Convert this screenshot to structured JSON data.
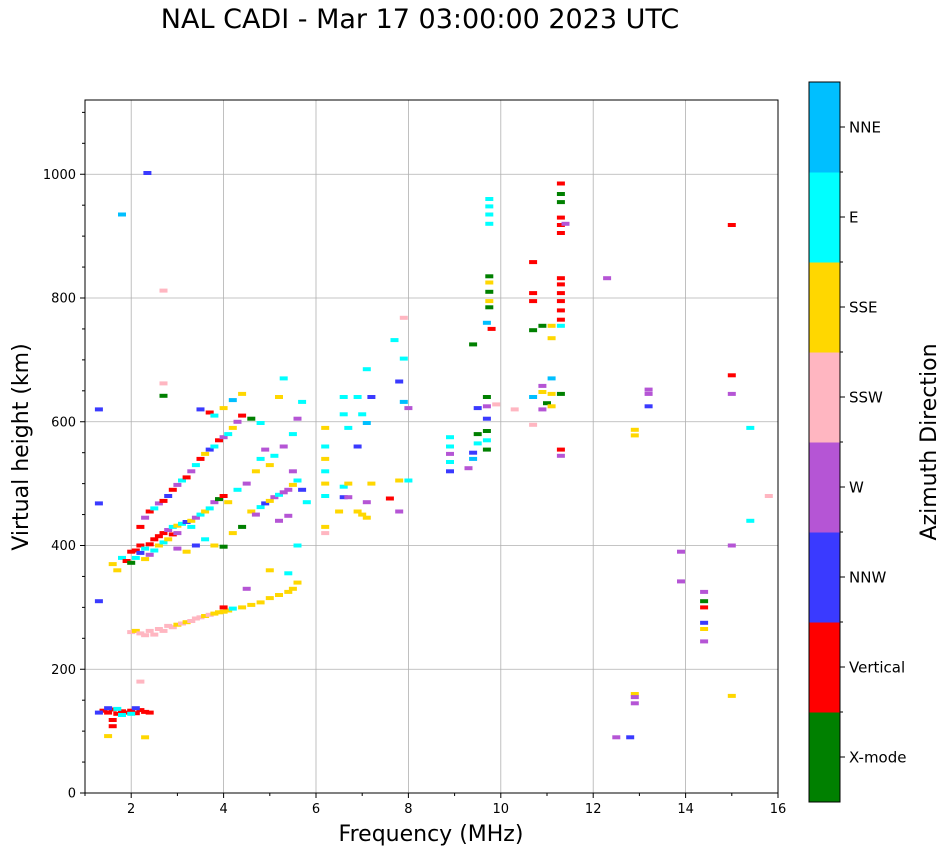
{
  "chart_data": {
    "type": "scatter",
    "title": "NAL CADI - Mar 17 03:00:00 2023 UTC",
    "xlabel": "Frequency (MHz)",
    "ylabel": "Virtual height (km)",
    "xlim": [
      1.0,
      16.0
    ],
    "ylim": [
      0,
      1120
    ],
    "xticks": [
      2,
      4,
      6,
      8,
      10,
      12,
      14,
      16
    ],
    "yticks": [
      0,
      200,
      400,
      600,
      800,
      1000
    ],
    "grid": true,
    "colorbar": {
      "label": "Azimuth Direction",
      "categories": [
        {
          "name": "X-mode",
          "color": "#008000"
        },
        {
          "name": "Vertical",
          "color": "#ff0000"
        },
        {
          "name": "NNW",
          "color": "#3a3aff"
        },
        {
          "name": "W",
          "color": "#b555d5"
        },
        {
          "name": "SSW",
          "color": "#ffb6c1"
        },
        {
          "name": "SSE",
          "color": "#ffd700"
        },
        {
          "name": "E",
          "color": "#00ffff"
        },
        {
          "name": "NNE",
          "color": "#00bfff"
        }
      ]
    },
    "points": [
      [
        1.4,
        133,
        "Vertical"
      ],
      [
        1.5,
        130,
        "Vertical"
      ],
      [
        1.6,
        135,
        "Vertical"
      ],
      [
        1.7,
        128,
        "Vertical"
      ],
      [
        1.8,
        132,
        "Vertical"
      ],
      [
        1.9,
        130,
        "Vertical"
      ],
      [
        2.0,
        133,
        "Vertical"
      ],
      [
        2.1,
        129,
        "Vertical"
      ],
      [
        2.2,
        134,
        "Vertical"
      ],
      [
        2.3,
        131,
        "Vertical"
      ],
      [
        2.4,
        130,
        "Vertical"
      ],
      [
        1.6,
        118,
        "Vertical"
      ],
      [
        1.6,
        108,
        "Vertical"
      ],
      [
        1.3,
        130,
        "NNW"
      ],
      [
        1.5,
        137,
        "NNW"
      ],
      [
        1.7,
        136,
        "E"
      ],
      [
        1.8,
        126,
        "E"
      ],
      [
        2.0,
        128,
        "E"
      ],
      [
        2.1,
        137,
        "NNW"
      ],
      [
        1.5,
        92,
        "SSE"
      ],
      [
        2.3,
        90,
        "SSE"
      ],
      [
        2.2,
        180,
        "SSW"
      ],
      [
        2.0,
        260,
        "SSW"
      ],
      [
        2.1,
        262,
        "SSE"
      ],
      [
        2.2,
        258,
        "SSW"
      ],
      [
        2.3,
        255,
        "SSW"
      ],
      [
        2.4,
        262,
        "SSW"
      ],
      [
        2.5,
        256,
        "SSW"
      ],
      [
        2.6,
        265,
        "SSW"
      ],
      [
        2.7,
        262,
        "SSW"
      ],
      [
        2.8,
        270,
        "SSW"
      ],
      [
        2.9,
        268,
        "SSW"
      ],
      [
        3.0,
        272,
        "SSE"
      ],
      [
        3.1,
        274,
        "SSW"
      ],
      [
        3.2,
        276,
        "SSE"
      ],
      [
        3.3,
        278,
        "SSW"
      ],
      [
        3.4,
        282,
        "SSW"
      ],
      [
        3.5,
        284,
        "SSW"
      ],
      [
        3.6,
        286,
        "SSE"
      ],
      [
        3.7,
        288,
        "SSW"
      ],
      [
        3.8,
        290,
        "SSE"
      ],
      [
        3.9,
        292,
        "SSE"
      ],
      [
        4.0,
        293,
        "SSE"
      ],
      [
        4.1,
        295,
        "SSE"
      ],
      [
        4.2,
        298,
        "E"
      ],
      [
        4.4,
        300,
        "SSE"
      ],
      [
        4.6,
        304,
        "SSE"
      ],
      [
        4.8,
        308,
        "SSE"
      ],
      [
        5.0,
        315,
        "SSE"
      ],
      [
        5.2,
        320,
        "SSE"
      ],
      [
        5.4,
        325,
        "SSE"
      ],
      [
        5.5,
        330,
        "SSE"
      ],
      [
        5.6,
        340,
        "SSE"
      ],
      [
        4.0,
        300,
        "Vertical"
      ],
      [
        4.5,
        330,
        "W"
      ],
      [
        5.0,
        360,
        "SSE"
      ],
      [
        5.4,
        355,
        "E"
      ],
      [
        5.6,
        400,
        "E"
      ],
      [
        1.3,
        310,
        "NNW"
      ],
      [
        1.3,
        468,
        "NNW"
      ],
      [
        1.3,
        620,
        "NNW"
      ],
      [
        1.8,
        935,
        "NNE"
      ],
      [
        2.35,
        1002,
        "NNW"
      ],
      [
        2.7,
        812,
        "SSW"
      ],
      [
        2.7,
        662,
        "SSW"
      ],
      [
        2.7,
        642,
        "X-mode"
      ],
      [
        1.6,
        370,
        "SSE"
      ],
      [
        1.7,
        360,
        "SSE"
      ],
      [
        1.8,
        380,
        "E"
      ],
      [
        1.9,
        375,
        "Vertical"
      ],
      [
        2.0,
        390,
        "Vertical"
      ],
      [
        2.0,
        372,
        "X-mode"
      ],
      [
        2.1,
        392,
        "Vertical"
      ],
      [
        2.1,
        380,
        "E"
      ],
      [
        2.2,
        388,
        "NNW"
      ],
      [
        2.2,
        400,
        "Vertical"
      ],
      [
        2.3,
        395,
        "E"
      ],
      [
        2.3,
        378,
        "SSE"
      ],
      [
        2.4,
        402,
        "Vertical"
      ],
      [
        2.4,
        385,
        "W"
      ],
      [
        2.5,
        410,
        "Vertical"
      ],
      [
        2.5,
        392,
        "E"
      ],
      [
        2.6,
        415,
        "Vertical"
      ],
      [
        2.6,
        400,
        "SSE"
      ],
      [
        2.7,
        420,
        "Vertical"
      ],
      [
        2.7,
        405,
        "E"
      ],
      [
        2.8,
        425,
        "W"
      ],
      [
        2.8,
        410,
        "SSE"
      ],
      [
        2.9,
        430,
        "E"
      ],
      [
        2.9,
        418,
        "Vertical"
      ],
      [
        3.0,
        432,
        "SSE"
      ],
      [
        3.0,
        420,
        "W"
      ],
      [
        3.1,
        435,
        "E"
      ],
      [
        3.2,
        438,
        "NNW"
      ],
      [
        3.3,
        440,
        "SSE"
      ],
      [
        3.3,
        430,
        "E"
      ],
      [
        3.4,
        445,
        "W"
      ],
      [
        3.5,
        450,
        "E"
      ],
      [
        3.6,
        455,
        "SSE"
      ],
      [
        3.7,
        460,
        "E"
      ],
      [
        3.8,
        470,
        "W"
      ],
      [
        3.9,
        475,
        "X-mode"
      ],
      [
        2.2,
        430,
        "Vertical"
      ],
      [
        2.3,
        445,
        "W"
      ],
      [
        2.4,
        455,
        "Vertical"
      ],
      [
        2.5,
        460,
        "E"
      ],
      [
        2.6,
        468,
        "W"
      ],
      [
        2.7,
        472,
        "Vertical"
      ],
      [
        2.8,
        480,
        "NNW"
      ],
      [
        2.9,
        490,
        "Vertical"
      ],
      [
        3.0,
        498,
        "W"
      ],
      [
        3.1,
        505,
        "E"
      ],
      [
        3.2,
        510,
        "Vertical"
      ],
      [
        3.3,
        520,
        "W"
      ],
      [
        3.4,
        530,
        "E"
      ],
      [
        3.5,
        540,
        "Vertical"
      ],
      [
        3.6,
        548,
        "SSE"
      ],
      [
        3.7,
        555,
        "NNW"
      ],
      [
        3.8,
        560,
        "E"
      ],
      [
        3.9,
        570,
        "Vertical"
      ],
      [
        4.0,
        575,
        "W"
      ],
      [
        4.1,
        580,
        "E"
      ],
      [
        4.2,
        590,
        "SSE"
      ],
      [
        4.3,
        600,
        "W"
      ],
      [
        4.4,
        610,
        "Vertical"
      ],
      [
        3.0,
        395,
        "W"
      ],
      [
        3.2,
        390,
        "SSE"
      ],
      [
        3.4,
        400,
        "NNW"
      ],
      [
        3.6,
        410,
        "E"
      ],
      [
        3.8,
        400,
        "SSE"
      ],
      [
        4.0,
        398,
        "X-mode"
      ],
      [
        4.2,
        420,
        "SSE"
      ],
      [
        4.4,
        430,
        "X-mode"
      ],
      [
        3.5,
        620,
        "NNW"
      ],
      [
        3.7,
        615,
        "Vertical"
      ],
      [
        3.8,
        610,
        "E"
      ],
      [
        4.0,
        622,
        "SSE"
      ],
      [
        4.2,
        635,
        "NNE"
      ],
      [
        4.4,
        645,
        "SSE"
      ],
      [
        4.6,
        605,
        "X-mode"
      ],
      [
        4.8,
        598,
        "E"
      ],
      [
        4.0,
        480,
        "Vertical"
      ],
      [
        4.1,
        470,
        "SSE"
      ],
      [
        4.3,
        490,
        "E"
      ],
      [
        4.5,
        500,
        "W"
      ],
      [
        4.7,
        520,
        "SSE"
      ],
      [
        4.8,
        540,
        "E"
      ],
      [
        4.9,
        555,
        "W"
      ],
      [
        4.6,
        455,
        "SSE"
      ],
      [
        4.7,
        450,
        "W"
      ],
      [
        4.8,
        462,
        "E"
      ],
      [
        4.9,
        468,
        "NNW"
      ],
      [
        5.0,
        472,
        "SSE"
      ],
      [
        5.1,
        478,
        "W"
      ],
      [
        5.2,
        482,
        "E"
      ],
      [
        5.3,
        486,
        "W"
      ],
      [
        5.4,
        490,
        "W"
      ],
      [
        5.5,
        498,
        "SSE"
      ],
      [
        5.6,
        505,
        "E"
      ],
      [
        5.2,
        440,
        "W"
      ],
      [
        5.4,
        448,
        "W"
      ],
      [
        5.0,
        530,
        "SSE"
      ],
      [
        5.1,
        545,
        "E"
      ],
      [
        5.3,
        560,
        "W"
      ],
      [
        5.5,
        580,
        "E"
      ],
      [
        5.6,
        605,
        "W"
      ],
      [
        5.7,
        632,
        "E"
      ],
      [
        5.3,
        670,
        "E"
      ],
      [
        5.2,
        640,
        "SSE"
      ],
      [
        5.5,
        520,
        "W"
      ],
      [
        5.7,
        490,
        "NNW"
      ],
      [
        5.8,
        470,
        "E"
      ],
      [
        6.2,
        590,
        "SSE"
      ],
      [
        6.2,
        560,
        "E"
      ],
      [
        6.2,
        540,
        "SSE"
      ],
      [
        6.2,
        520,
        "E"
      ],
      [
        6.2,
        500,
        "SSE"
      ],
      [
        6.2,
        480,
        "E"
      ],
      [
        6.2,
        430,
        "SSE"
      ],
      [
        6.2,
        420,
        "SSW"
      ],
      [
        6.5,
        455,
        "SSE"
      ],
      [
        6.6,
        478,
        "NNW"
      ],
      [
        6.7,
        478,
        "W"
      ],
      [
        6.6,
        495,
        "E"
      ],
      [
        6.7,
        500,
        "SSE"
      ],
      [
        6.6,
        612,
        "E"
      ],
      [
        6.7,
        590,
        "E"
      ],
      [
        6.6,
        640,
        "E"
      ],
      [
        6.9,
        455,
        "SSE"
      ],
      [
        7.0,
        450,
        "SSE"
      ],
      [
        7.1,
        445,
        "SSE"
      ],
      [
        7.1,
        470,
        "W"
      ],
      [
        7.2,
        500,
        "SSE"
      ],
      [
        6.9,
        640,
        "E"
      ],
      [
        7.0,
        612,
        "E"
      ],
      [
        7.1,
        598,
        "NNE"
      ],
      [
        6.9,
        560,
        "NNW"
      ],
      [
        7.2,
        640,
        "NNW"
      ],
      [
        7.1,
        685,
        "E"
      ],
      [
        7.6,
        476,
        "Vertical"
      ],
      [
        7.8,
        455,
        "W"
      ],
      [
        7.8,
        505,
        "SSE"
      ],
      [
        8.0,
        505,
        "E"
      ],
      [
        7.9,
        632,
        "NNE"
      ],
      [
        8.0,
        622,
        "W"
      ],
      [
        7.8,
        665,
        "NNW"
      ],
      [
        7.7,
        732,
        "E"
      ],
      [
        7.9,
        702,
        "E"
      ],
      [
        7.9,
        768,
        "SSW"
      ],
      [
        8.9,
        575,
        "E"
      ],
      [
        8.9,
        560,
        "E"
      ],
      [
        8.9,
        548,
        "W"
      ],
      [
        8.9,
        535,
        "E"
      ],
      [
        8.9,
        520,
        "NNW"
      ],
      [
        9.3,
        525,
        "W"
      ],
      [
        9.4,
        540,
        "NNE"
      ],
      [
        9.4,
        550,
        "NNW"
      ],
      [
        9.5,
        565,
        "E"
      ],
      [
        9.5,
        580,
        "X-mode"
      ],
      [
        9.5,
        622,
        "NNW"
      ],
      [
        9.4,
        725,
        "X-mode"
      ],
      [
        9.7,
        640,
        "X-mode"
      ],
      [
        9.7,
        625,
        "W"
      ],
      [
        9.7,
        605,
        "NNW"
      ],
      [
        9.7,
        585,
        "X-mode"
      ],
      [
        9.7,
        570,
        "E"
      ],
      [
        9.7,
        555,
        "X-mode"
      ],
      [
        9.8,
        750,
        "Vertical"
      ],
      [
        9.7,
        760,
        "NNE"
      ],
      [
        9.75,
        795,
        "SSE"
      ],
      [
        9.75,
        810,
        "X-mode"
      ],
      [
        9.75,
        825,
        "SSE"
      ],
      [
        9.75,
        835,
        "X-mode"
      ],
      [
        9.75,
        785,
        "X-mode"
      ],
      [
        9.75,
        920,
        "E"
      ],
      [
        9.75,
        935,
        "E"
      ],
      [
        9.75,
        948,
        "E"
      ],
      [
        9.75,
        960,
        "E"
      ],
      [
        9.9,
        628,
        "SSW"
      ],
      [
        10.3,
        620,
        "SSW"
      ],
      [
        10.7,
        795,
        "Vertical"
      ],
      [
        10.7,
        808,
        "Vertical"
      ],
      [
        10.7,
        858,
        "Vertical"
      ],
      [
        10.7,
        748,
        "X-mode"
      ],
      [
        10.7,
        640,
        "NNE"
      ],
      [
        10.7,
        595,
        "SSW"
      ],
      [
        10.9,
        755,
        "X-mode"
      ],
      [
        10.9,
        658,
        "W"
      ],
      [
        10.9,
        620,
        "W"
      ],
      [
        10.9,
        648,
        "SSE"
      ],
      [
        11.0,
        630,
        "X-mode"
      ],
      [
        11.1,
        735,
        "SSE"
      ],
      [
        11.1,
        755,
        "SSE"
      ],
      [
        11.1,
        670,
        "NNE"
      ],
      [
        11.1,
        625,
        "SSE"
      ],
      [
        11.1,
        645,
        "SSE"
      ],
      [
        11.3,
        645,
        "X-mode"
      ],
      [
        11.3,
        555,
        "Vertical"
      ],
      [
        11.3,
        545,
        "W"
      ],
      [
        11.3,
        755,
        "E"
      ],
      [
        11.3,
        765,
        "Vertical"
      ],
      [
        11.3,
        780,
        "Vertical"
      ],
      [
        11.3,
        795,
        "Vertical"
      ],
      [
        11.3,
        808,
        "Vertical"
      ],
      [
        11.3,
        822,
        "Vertical"
      ],
      [
        11.3,
        832,
        "Vertical"
      ],
      [
        11.3,
        905,
        "Vertical"
      ],
      [
        11.3,
        918,
        "Vertical"
      ],
      [
        11.3,
        930,
        "Vertical"
      ],
      [
        11.3,
        955,
        "X-mode"
      ],
      [
        11.3,
        968,
        "X-mode"
      ],
      [
        11.3,
        985,
        "Vertical"
      ],
      [
        11.4,
        920,
        "W"
      ],
      [
        12.3,
        832,
        "W"
      ],
      [
        12.5,
        90,
        "W"
      ],
      [
        12.8,
        90,
        "NNW"
      ],
      [
        12.9,
        160,
        "SSE"
      ],
      [
        12.9,
        155,
        "W"
      ],
      [
        12.9,
        145,
        "W"
      ],
      [
        12.9,
        587,
        "SSE"
      ],
      [
        12.9,
        578,
        "SSE"
      ],
      [
        13.2,
        625,
        "NNW"
      ],
      [
        13.2,
        645,
        "W"
      ],
      [
        13.2,
        652,
        "W"
      ],
      [
        13.9,
        390,
        "W"
      ],
      [
        13.9,
        342,
        "W"
      ],
      [
        14.4,
        325,
        "W"
      ],
      [
        14.4,
        310,
        "X-mode"
      ],
      [
        14.4,
        300,
        "Vertical"
      ],
      [
        14.4,
        275,
        "NNW"
      ],
      [
        14.4,
        265,
        "SSE"
      ],
      [
        14.4,
        245,
        "W"
      ],
      [
        15.0,
        918,
        "Vertical"
      ],
      [
        15.0,
        675,
        "Vertical"
      ],
      [
        15.0,
        645,
        "W"
      ],
      [
        15.0,
        400,
        "W"
      ],
      [
        15.0,
        157,
        "SSE"
      ],
      [
        15.4,
        590,
        "E"
      ],
      [
        15.4,
        440,
        "E"
      ],
      [
        15.8,
        480,
        "SSW"
      ]
    ]
  }
}
